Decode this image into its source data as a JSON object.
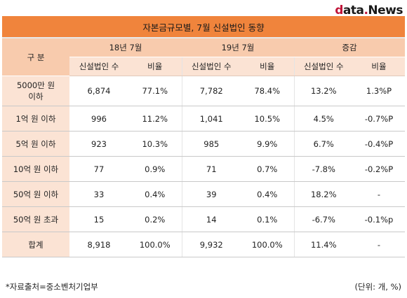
{
  "logo": {
    "first": "d",
    "rest": "ata",
    "tail": "News"
  },
  "title": "자본금규모별, 7월 신설법인 동향",
  "header": {
    "row_label": "구  분",
    "groups": [
      "18년 7월",
      "19년 7월",
      "증감"
    ],
    "sub": [
      "신설법인 수",
      "비율",
      "신설법인 수",
      "비율",
      "신설법인 수",
      "비율"
    ]
  },
  "rows": [
    {
      "label": "5000만 원\n이하",
      "cells": [
        "6,874",
        "77.1%",
        "7,782",
        "78.4%",
        "13.2%",
        "1.3%P"
      ]
    },
    {
      "label": "1억 원 이하",
      "cells": [
        "996",
        "11.2%",
        "1,041",
        "10.5%",
        "4.5%",
        "-0.7%P"
      ]
    },
    {
      "label": "5억 원 이하",
      "cells": [
        "923",
        "10.3%",
        "985",
        "9.9%",
        "6.7%",
        "-0.4%P"
      ]
    },
    {
      "label": "10억 원 이하",
      "cells": [
        "77",
        "0.9%",
        "71",
        "0.7%",
        "-7.8%",
        "-0.2%P"
      ]
    },
    {
      "label": "50억 원 이하",
      "cells": [
        "33",
        "0.4%",
        "39",
        "0.4%",
        "18.2%",
        "-"
      ]
    },
    {
      "label": "50억 원 초과",
      "cells": [
        "15",
        "0.2%",
        "14",
        "0.1%",
        "-6.7%",
        "-0.1%p"
      ]
    },
    {
      "label": "합계",
      "cells": [
        "8,918",
        "100.0%",
        "9,932",
        "100.0%",
        "11.4%",
        "-"
      ]
    }
  ],
  "footer": {
    "source": "*자료출처=중소벤처기업부",
    "unit": "(단위: 개, %)"
  }
}
